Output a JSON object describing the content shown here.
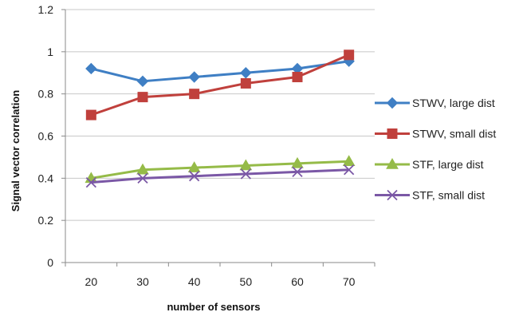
{
  "chart_data": {
    "type": "line",
    "title": "",
    "xlabel": "number of sensors",
    "ylabel": "Signal vector correlation",
    "x": [
      20,
      30,
      40,
      50,
      60,
      70
    ],
    "ylim": [
      0,
      1.2
    ],
    "yticks": [
      "0",
      "0.2",
      "0.4",
      "0.6",
      "0.8",
      "1",
      "1.2"
    ],
    "xticks": [
      "20",
      "30",
      "40",
      "50",
      "60",
      "70"
    ],
    "grid": "horizontal",
    "legend_position": "right",
    "series": [
      {
        "name": "STWV, large dist",
        "values": [
          0.92,
          0.86,
          0.88,
          0.9,
          0.92,
          0.955
        ],
        "color": "#3f7fc4",
        "marker": "diamond"
      },
      {
        "name": "STWV, small dist",
        "values": [
          0.7,
          0.785,
          0.8,
          0.85,
          0.88,
          0.985
        ],
        "color": "#c0403c",
        "marker": "square"
      },
      {
        "name": "STF, large dist",
        "values": [
          0.4,
          0.44,
          0.45,
          0.46,
          0.47,
          0.48
        ],
        "color": "#95bb48",
        "marker": "triangle"
      },
      {
        "name": "STF, small dist",
        "values": [
          0.38,
          0.4,
          0.41,
          0.42,
          0.43,
          0.44
        ],
        "color": "#7b58a6",
        "marker": "x"
      }
    ]
  }
}
